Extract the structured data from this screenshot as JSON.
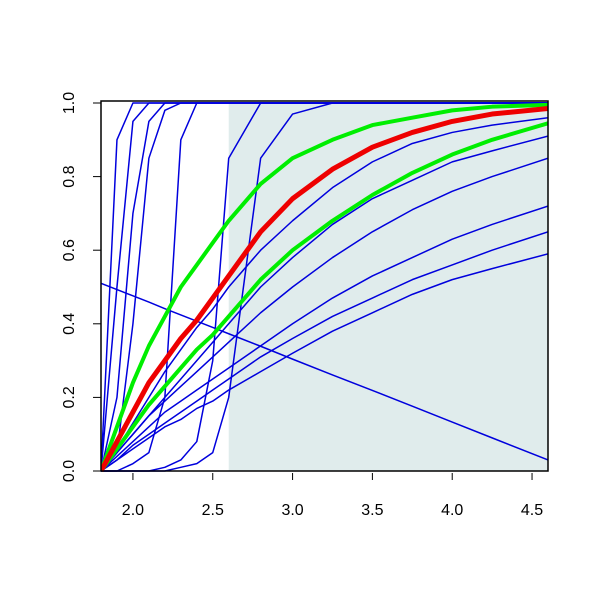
{
  "chart_data": {
    "type": "line",
    "xlim": [
      1.8,
      4.6
    ],
    "ylim": [
      0,
      1
    ],
    "xticks": [
      {
        "value": 2.0,
        "label": "2.0"
      },
      {
        "value": 2.5,
        "label": "2.5"
      },
      {
        "value": 3.0,
        "label": "3.0"
      },
      {
        "value": 3.5,
        "label": "3.5"
      },
      {
        "value": 4.0,
        "label": "4.0"
      },
      {
        "value": 4.5,
        "label": "4.5"
      }
    ],
    "yticks": [
      {
        "value": 0,
        "label": "0.0"
      },
      {
        "value": 0.2,
        "label": "0.2"
      },
      {
        "value": 0.4,
        "label": "0.4"
      },
      {
        "value": 0.6,
        "label": "0.6"
      },
      {
        "value": 0.8,
        "label": "0.8"
      },
      {
        "value": 1.0,
        "label": "1.0"
      }
    ],
    "shaded_region": {
      "x": [
        2.6,
        4.6
      ],
      "color": "#e0ecec"
    },
    "x": [
      1.8,
      1.9,
      2.0,
      2.1,
      2.2,
      2.3,
      2.4,
      2.5,
      2.6,
      2.8,
      3.0,
      3.25,
      3.5,
      3.75,
      4.0,
      4.25,
      4.6
    ],
    "series": [
      {
        "color": "#0000dd",
        "width": 1.5,
        "values": [
          0,
          0.9,
          1,
          1,
          1,
          1,
          1,
          1,
          1,
          1,
          1,
          1,
          1,
          1,
          1,
          1,
          1
        ]
      },
      {
        "color": "#0000dd",
        "width": 1.5,
        "values": [
          0,
          0.5,
          0.95,
          1,
          1,
          1,
          1,
          1,
          1,
          1,
          1,
          1,
          1,
          1,
          1,
          1,
          1
        ]
      },
      {
        "color": "#0000dd",
        "width": 1.5,
        "values": [
          0,
          0.2,
          0.7,
          0.95,
          1,
          1,
          1,
          1,
          1,
          1,
          1,
          1,
          1,
          1,
          1,
          1,
          1
        ]
      },
      {
        "color": "#0000dd",
        "width": 1.5,
        "values": [
          0,
          0.05,
          0.4,
          0.85,
          0.98,
          1,
          1,
          1,
          1,
          1,
          1,
          1,
          1,
          1,
          1,
          1,
          1
        ]
      },
      {
        "color": "#0000dd",
        "width": 1.5,
        "values": [
          0,
          0,
          0.02,
          0.05,
          0.2,
          0.9,
          1,
          1,
          1,
          1,
          1,
          1,
          1,
          1,
          1,
          1,
          1
        ]
      },
      {
        "color": "#0000dd",
        "width": 1.5,
        "values": [
          0,
          0,
          0,
          0,
          0.01,
          0.03,
          0.08,
          0.3,
          0.85,
          1,
          1,
          1,
          1,
          1,
          1,
          1,
          1
        ]
      },
      {
        "color": "#0000dd",
        "width": 1.5,
        "values": [
          0,
          0,
          0,
          0,
          0,
          0.01,
          0.02,
          0.05,
          0.2,
          0.85,
          0.97,
          1,
          1,
          1,
          1,
          1,
          1
        ]
      },
      {
        "color": "#0000dd",
        "width": 1.5,
        "values": [
          0,
          0.05,
          0.1,
          0.15,
          0.2,
          0.25,
          0.3,
          0.35,
          0.4,
          0.5,
          0.58,
          0.67,
          0.74,
          0.79,
          0.84,
          0.87,
          0.91
        ]
      },
      {
        "color": "#0000dd",
        "width": 1.5,
        "values": [
          0,
          0.04,
          0.08,
          0.12,
          0.16,
          0.19,
          0.22,
          0.25,
          0.28,
          0.34,
          0.4,
          0.47,
          0.53,
          0.58,
          0.63,
          0.67,
          0.72
        ]
      },
      {
        "color": "#0000dd",
        "width": 1.5,
        "values": [
          0,
          0.03,
          0.07,
          0.1,
          0.13,
          0.16,
          0.19,
          0.22,
          0.25,
          0.31,
          0.36,
          0.42,
          0.47,
          0.52,
          0.56,
          0.6,
          0.65
        ]
      },
      {
        "color": "#0000dd",
        "width": 1.5,
        "values": [
          0,
          0.03,
          0.06,
          0.09,
          0.12,
          0.14,
          0.17,
          0.19,
          0.22,
          0.27,
          0.32,
          0.38,
          0.43,
          0.48,
          0.52,
          0.55,
          0.59
        ]
      },
      {
        "color": "#0000dd",
        "width": 1.5,
        "values": [
          0,
          0.05,
          0.1,
          0.15,
          0.19,
          0.23,
          0.27,
          0.31,
          0.35,
          0.43,
          0.5,
          0.58,
          0.65,
          0.71,
          0.76,
          0.8,
          0.85
        ]
      },
      {
        "color": "#0000dd",
        "width": 1.5,
        "values": [
          0,
          0.06,
          0.13,
          0.2,
          0.27,
          0.33,
          0.39,
          0.44,
          0.5,
          0.6,
          0.68,
          0.77,
          0.84,
          0.89,
          0.92,
          0.94,
          0.96
        ]
      },
      {
        "color": "#0000dd",
        "width": 1.5,
        "values": [
          0.51,
          0.493,
          0.476,
          0.459,
          0.441,
          0.424,
          0.407,
          0.39,
          0.373,
          0.339,
          0.304,
          0.261,
          0.219,
          0.176,
          0.133,
          0.09,
          0.03
        ]
      },
      {
        "color": "#00ee00",
        "width": 4,
        "values": [
          0,
          0.12,
          0.24,
          0.34,
          0.42,
          0.5,
          0.56,
          0.62,
          0.68,
          0.78,
          0.85,
          0.9,
          0.94,
          0.96,
          0.98,
          0.99,
          0.995
        ]
      },
      {
        "color": "#00ee00",
        "width": 4,
        "values": [
          0,
          0.06,
          0.12,
          0.18,
          0.23,
          0.28,
          0.33,
          0.37,
          0.42,
          0.52,
          0.6,
          0.68,
          0.75,
          0.81,
          0.86,
          0.9,
          0.945
        ]
      },
      {
        "color": "#ee0000",
        "width": 5,
        "values": [
          0,
          0.08,
          0.16,
          0.24,
          0.3,
          0.36,
          0.41,
          0.47,
          0.53,
          0.65,
          0.74,
          0.82,
          0.88,
          0.92,
          0.95,
          0.97,
          0.985
        ]
      }
    ]
  }
}
